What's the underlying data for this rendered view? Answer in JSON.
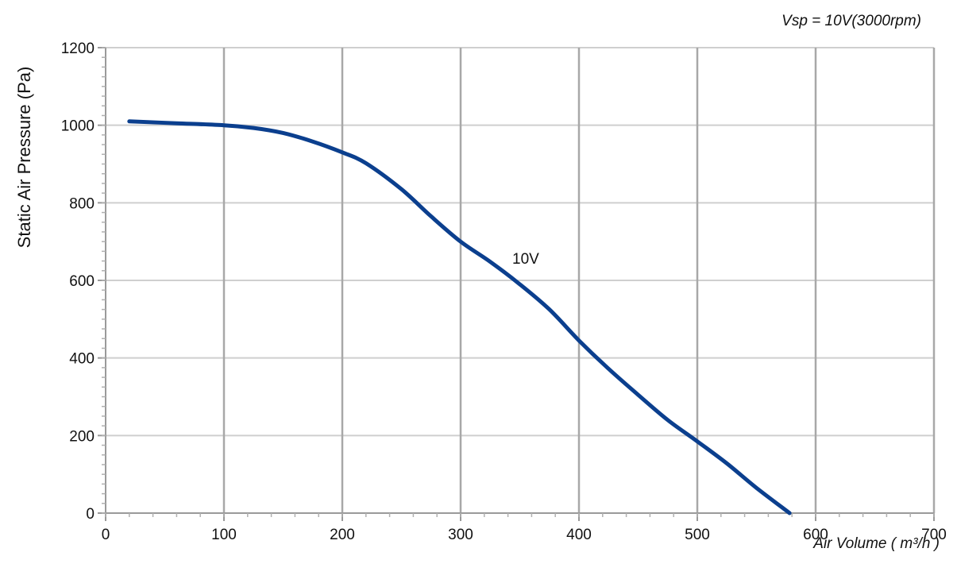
{
  "chart_data": {
    "type": "line",
    "annotation": "Vsp = 10V(3000rpm)",
    "xlabel": "Air Volume ( m³/h )",
    "ylabel": "Static Air Pressure  (Pa)",
    "xlim": [
      0,
      700
    ],
    "ylim": [
      0,
      1200
    ],
    "xticks": [
      "0",
      "100",
      "200",
      "300",
      "400",
      "500",
      "600",
      "700"
    ],
    "yticks": [
      "0",
      "200",
      "400",
      "600",
      "800",
      "1000",
      "1200"
    ],
    "grid": true,
    "colors": {
      "series": "#0b3f8e",
      "grid": "#cfcfcf",
      "xgrid": "#a8a8a8"
    },
    "series": [
      {
        "name": "10V",
        "x": [
          20,
          60,
          100,
          125,
          150,
          175,
          200,
          220,
          250,
          275,
          300,
          325,
          350,
          375,
          400,
          425,
          450,
          475,
          500,
          525,
          550,
          578
        ],
        "y": [
          1010,
          1005,
          1000,
          993,
          980,
          958,
          930,
          902,
          835,
          765,
          700,
          648,
          590,
          525,
          445,
          372,
          305,
          240,
          185,
          128,
          65,
          0
        ]
      }
    ]
  }
}
